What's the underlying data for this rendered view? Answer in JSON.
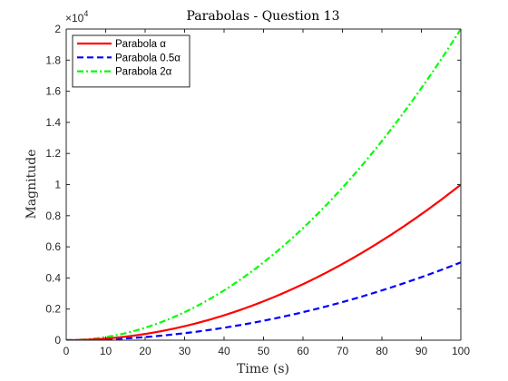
{
  "chart_data": {
    "type": "line",
    "title": "Parabolas - Question 13",
    "xlabel": "Time (s)",
    "ylabel": "Magnitude",
    "xlim": [
      0,
      100
    ],
    "ylim": [
      0,
      20000
    ],
    "x_ticks": [
      0,
      10,
      20,
      30,
      40,
      50,
      60,
      70,
      80,
      90,
      100
    ],
    "x_tick_labels": [
      "0",
      "10",
      "20",
      "30",
      "40",
      "50",
      "60",
      "70",
      "80",
      "90",
      "100"
    ],
    "y_ticks": [
      0,
      2000,
      4000,
      6000,
      8000,
      10000,
      12000,
      14000,
      16000,
      18000,
      20000
    ],
    "y_tick_labels": [
      "0",
      "0.2",
      "0.4",
      "0.6",
      "0.8",
      "1",
      "1.2",
      "1.4",
      "1.6",
      "1.8",
      "2"
    ],
    "y_exponent_base": "×10",
    "y_exponent": "4",
    "grid": false,
    "legend_position": "top-left",
    "x": [
      0,
      5,
      10,
      15,
      20,
      25,
      30,
      35,
      40,
      45,
      50,
      55,
      60,
      65,
      70,
      75,
      80,
      85,
      90,
      95,
      100
    ],
    "series": [
      {
        "name": "Parabola α",
        "color": "#ff0000",
        "line_style": "solid",
        "values": [
          0,
          25,
          100,
          225,
          400,
          625,
          900,
          1225,
          1600,
          2025,
          2500,
          3025,
          3600,
          4225,
          4900,
          5625,
          6400,
          7225,
          8100,
          9025,
          10000
        ]
      },
      {
        "name": "Parabola 0.5α",
        "color": "#0000ff",
        "line_style": "dashed",
        "values": [
          0,
          12.5,
          50,
          112.5,
          200,
          312.5,
          450,
          612.5,
          800,
          1012.5,
          1250,
          1512.5,
          1800,
          2112.5,
          2450,
          2812.5,
          3200,
          3612.5,
          4050,
          4512.5,
          5000
        ]
      },
      {
        "name": "Parabola 2α",
        "color": "#00ff00",
        "line_style": "dash-dot",
        "values": [
          0,
          50,
          200,
          450,
          800,
          1250,
          1800,
          2450,
          3200,
          4050,
          5000,
          6050,
          7200,
          8450,
          9800,
          11250,
          12800,
          14450,
          16200,
          18050,
          20000
        ]
      }
    ]
  }
}
